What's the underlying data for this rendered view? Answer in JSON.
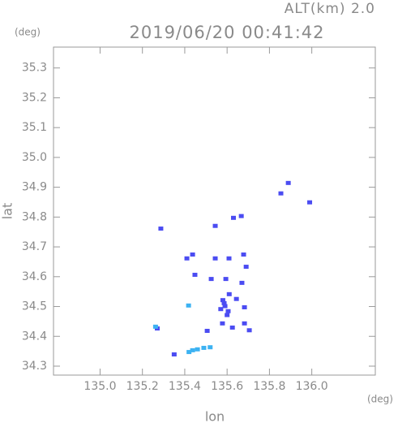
{
  "chart_data": {
    "type": "scatter",
    "title": "2019/06/20 00:41:42",
    "subtitle": "ALT(km) 2.0",
    "y_unit": "(deg)",
    "x_unit": "(deg)",
    "xlabel": "lon",
    "ylabel": "lat",
    "xlim": [
      134.78,
      136.3
    ],
    "ylim": [
      34.27,
      35.37
    ],
    "xticks": [
      {
        "value": 135.0,
        "label": "135.0"
      },
      135.2,
      135.4,
      135.6,
      135.8,
      {
        "value": 136.0,
        "label": "136.0"
      }
    ],
    "yticks": [
      34.3,
      34.4,
      34.5,
      34.6,
      34.7,
      34.8,
      34.9,
      {
        "value": 35.0,
        "label": "35.0"
      },
      35.1,
      35.2,
      35.3
    ],
    "grid": false,
    "series": [
      {
        "color": "#4b4cf2",
        "x": [
          135.287,
          135.854,
          135.889,
          135.99,
          135.544,
          135.63,
          135.667,
          135.41,
          135.437,
          135.544,
          135.609,
          135.678,
          135.69,
          135.448,
          135.525,
          135.594,
          135.67,
          135.586,
          135.605,
          135.644,
          135.682,
          135.578,
          135.625,
          135.682,
          135.506,
          135.705,
          135.27,
          135.35,
          135.58,
          135.59,
          135.6,
          135.57,
          135.61
        ],
        "values": [
          34.76,
          34.878,
          34.913,
          34.848,
          34.769,
          34.796,
          34.802,
          34.66,
          34.673,
          34.66,
          34.66,
          34.673,
          34.632,
          34.605,
          34.591,
          34.591,
          34.578,
          34.51,
          34.483,
          34.524,
          34.496,
          34.442,
          34.428,
          34.442,
          34.417,
          34.419,
          34.425,
          34.338,
          34.52,
          34.5,
          34.47,
          34.49,
          34.54
        ]
      },
      {
        "color": "#3cb2f2",
        "x": [
          135.418,
          135.262,
          135.42,
          135.437,
          135.46,
          135.49,
          135.52
        ],
        "values": [
          34.502,
          34.431,
          34.346,
          34.352,
          34.355,
          34.36,
          34.362
        ]
      }
    ]
  }
}
